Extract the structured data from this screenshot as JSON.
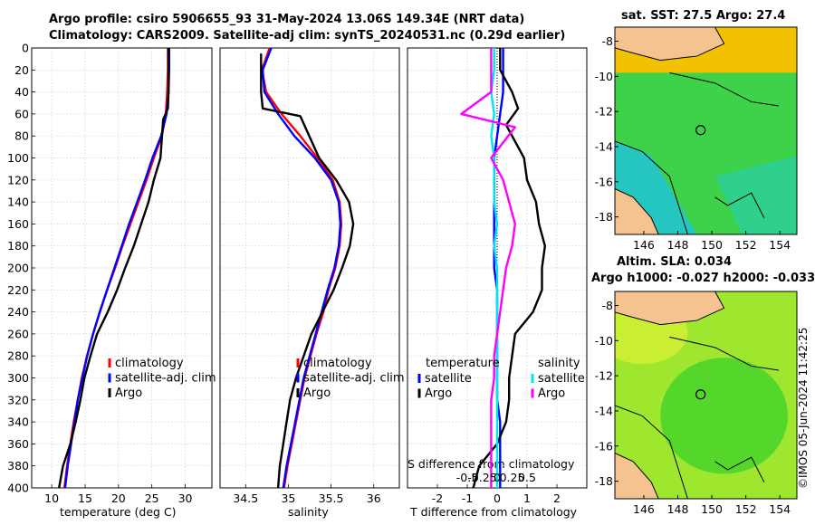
{
  "title": {
    "line1": "Argo profile: csiro 5906655_93 31-May-2024 13.06S 149.34E (NRT data)",
    "line2": "Climatology: CARS2009. Satellite-adj clim: synTS_20240531.nc (0.29d earlier)"
  },
  "colors": {
    "climatology": "#ff0000",
    "satellite": "#0000ff",
    "argo": "#000000",
    "sat_salinity": "#00e5ee",
    "argo_salinity": "#ff00ff",
    "land": "#f5c38f"
  },
  "chart_data": [
    {
      "type": "line",
      "id": "temperature",
      "xlabel": "temperature (deg C)",
      "ylabel": "",
      "xlim": [
        7,
        34
      ],
      "ylim": [
        400,
        0
      ],
      "xticks": [
        10,
        15,
        20,
        25,
        30
      ],
      "xtick_labels": [
        "10",
        "15",
        "20",
        "25",
        "30"
      ],
      "yticks": [
        0,
        20,
        40,
        60,
        80,
        100,
        120,
        140,
        160,
        180,
        200,
        220,
        240,
        260,
        280,
        300,
        320,
        340,
        360,
        380,
        400
      ],
      "ytick_labels": [
        "0",
        "20",
        "40",
        "60",
        "80",
        "100",
        "120",
        "140",
        "160",
        "180",
        "200",
        "220",
        "240",
        "260",
        "280",
        "300",
        "320",
        "340",
        "360",
        "380",
        "400"
      ],
      "legend": [
        "climatology",
        "satellite-adj. clim",
        "Argo"
      ],
      "series": [
        {
          "name": "climatology",
          "color": "#ff0000",
          "x": [
            27.4,
            27.4,
            27.3,
            27.1,
            26.5,
            25.3,
            24.2,
            23.0,
            21.8,
            20.6,
            19.5,
            18.3,
            17.2,
            16.2,
            15.3,
            14.5,
            13.9,
            13.3,
            12.8,
            12.3,
            11.9
          ],
          "y": [
            0,
            20,
            40,
            60,
            80,
            100,
            120,
            140,
            160,
            180,
            200,
            220,
            240,
            260,
            280,
            300,
            320,
            340,
            360,
            380,
            400
          ]
        },
        {
          "name": "satellite-adj. clim",
          "color": "#0000ff",
          "x": [
            27.6,
            27.6,
            27.5,
            27.2,
            26.4,
            25.1,
            24.0,
            22.8,
            21.6,
            20.5,
            19.4,
            18.3,
            17.2,
            16.2,
            15.3,
            14.6,
            13.9,
            13.4,
            12.9,
            12.4,
            12.0
          ],
          "y": [
            0,
            20,
            40,
            60,
            80,
            100,
            120,
            140,
            160,
            180,
            200,
            220,
            240,
            260,
            280,
            300,
            320,
            340,
            360,
            380,
            400
          ]
        },
        {
          "name": "Argo",
          "color": "#000000",
          "x": [
            27.5,
            27.5,
            27.5,
            27.4,
            26.7,
            26.3,
            25.3,
            24.5,
            23.4,
            22.3,
            21.0,
            19.8,
            18.4,
            16.8,
            15.8,
            14.9,
            14.3,
            13.6,
            12.8,
            11.7,
            11.1
          ],
          "y": [
            0,
            20,
            40,
            55,
            65,
            100,
            120,
            140,
            160,
            180,
            200,
            220,
            240,
            260,
            280,
            300,
            320,
            340,
            360,
            380,
            400
          ]
        }
      ]
    },
    {
      "type": "line",
      "id": "salinity",
      "xlabel": "salinity",
      "xlim": [
        34.2,
        36.3
      ],
      "ylim": [
        400,
        0
      ],
      "xticks": [
        34.5,
        35,
        35.5,
        36
      ],
      "xtick_labels": [
        "34.5",
        "35",
        "35.5",
        "36"
      ],
      "legend": [
        "climatology",
        "satellite-adj. clim",
        "Argo"
      ],
      "series": [
        {
          "name": "climatology",
          "color": "#ff0000",
          "x": [
            34.78,
            34.69,
            34.74,
            34.92,
            35.14,
            35.34,
            35.52,
            35.6,
            35.62,
            35.6,
            35.55,
            35.47,
            35.41,
            35.33,
            35.26,
            35.19,
            35.14,
            35.09,
            35.04,
            34.99,
            34.95
          ],
          "y": [
            0,
            20,
            40,
            60,
            80,
            100,
            120,
            140,
            160,
            180,
            200,
            220,
            240,
            260,
            280,
            300,
            320,
            340,
            360,
            380,
            400
          ]
        },
        {
          "name": "satellite-adj. clim",
          "color": "#0000ff",
          "x": [
            34.8,
            34.7,
            34.72,
            34.88,
            35.07,
            35.31,
            35.5,
            35.59,
            35.61,
            35.59,
            35.54,
            35.46,
            35.39,
            35.32,
            35.25,
            35.18,
            35.13,
            35.08,
            35.03,
            34.98,
            34.94
          ],
          "y": [
            0,
            20,
            40,
            60,
            80,
            100,
            120,
            140,
            160,
            180,
            200,
            220,
            240,
            260,
            280,
            300,
            320,
            340,
            360,
            380,
            400
          ]
        },
        {
          "name": "Argo",
          "color": "#000000",
          "x": [
            34.68,
            34.68,
            34.68,
            34.7,
            35.14,
            35.36,
            35.56,
            35.71,
            35.76,
            35.72,
            35.63,
            35.53,
            35.4,
            35.27,
            35.18,
            35.09,
            35.02,
            34.98,
            34.94,
            34.9,
            34.88
          ],
          "y": [
            5,
            20,
            40,
            55,
            62,
            100,
            120,
            140,
            160,
            180,
            200,
            220,
            240,
            260,
            280,
            300,
            320,
            340,
            360,
            380,
            400
          ]
        }
      ]
    },
    {
      "type": "line",
      "id": "differences",
      "xlabel": "T difference from climatology",
      "secondary_xlabel": "S difference from climatology",
      "xlim": [
        -3,
        3
      ],
      "ylim": [
        400,
        0
      ],
      "xticks": [
        -2,
        -1,
        0,
        1,
        2
      ],
      "xtick_labels": [
        "-2",
        "-1",
        "0",
        "1",
        "2"
      ],
      "secondary_xticks": [
        -1,
        -0.5,
        0,
        0.5,
        1
      ],
      "secondary_xtick_labels": [
        "-0.5",
        "-0.25",
        "0",
        "0.25",
        "0.5"
      ],
      "legend_temperature": {
        "title": "temperature",
        "entries": [
          "satellite",
          "Argo"
        ]
      },
      "legend_salinity": {
        "title": "salinity",
        "entries": [
          "satellite",
          "Argo"
        ]
      },
      "series": [
        {
          "name": "temperature satellite",
          "color": "#0000ff",
          "x": [
            0.2,
            0.2,
            0.2,
            0.1,
            0.0,
            -0.1,
            -0.1,
            -0.1,
            -0.1,
            -0.1,
            -0.1,
            0.0,
            0.0,
            0.0,
            0.0,
            0.0,
            0.0,
            0.1,
            0.1,
            0.1,
            0.1
          ],
          "y": [
            0,
            20,
            40,
            60,
            80,
            100,
            120,
            140,
            160,
            180,
            200,
            220,
            240,
            260,
            280,
            300,
            320,
            340,
            360,
            380,
            400
          ]
        },
        {
          "name": "temperature Argo",
          "color": "#000000",
          "x": [
            0.1,
            0.1,
            0.5,
            0.7,
            0.3,
            0.9,
            1.0,
            1.3,
            1.4,
            1.6,
            1.5,
            1.5,
            1.2,
            0.6,
            0.5,
            0.4,
            0.4,
            0.3,
            0.0,
            -0.6,
            -0.8
          ],
          "y": [
            0,
            20,
            40,
            55,
            70,
            100,
            120,
            140,
            160,
            180,
            200,
            220,
            240,
            260,
            280,
            300,
            320,
            340,
            360,
            380,
            400
          ]
        },
        {
          "name": "salinity satellite",
          "color": "#00e5ee",
          "x": [
            -0.1,
            -0.1,
            -0.2,
            -0.1,
            -0.2,
            -0.1,
            -0.1,
            -0.1,
            0.0,
            -0.1,
            0.0,
            0.0,
            0.0,
            0.0,
            0.0,
            0.0,
            0.0,
            0.0,
            0.0,
            0.0,
            0.0
          ],
          "y": [
            0,
            20,
            40,
            60,
            80,
            100,
            120,
            140,
            160,
            180,
            200,
            220,
            240,
            260,
            280,
            300,
            320,
            340,
            360,
            380,
            400
          ]
        },
        {
          "name": "salinity Argo",
          "color": "#ff00ff",
          "x": [
            -0.2,
            -0.2,
            -0.2,
            -1.2,
            0.6,
            -0.2,
            0.2,
            0.4,
            0.6,
            0.5,
            0.3,
            0.2,
            0.1,
            0.0,
            -0.1,
            -0.1,
            -0.2,
            -0.2,
            -0.2,
            -0.2,
            -0.2
          ],
          "y": [
            0,
            20,
            40,
            60,
            72,
            100,
            120,
            140,
            160,
            180,
            200,
            220,
            240,
            260,
            280,
            300,
            320,
            340,
            360,
            380,
            400
          ]
        }
      ]
    },
    {
      "type": "heatmap",
      "id": "sst_map",
      "title": "sat. SST: 27.5 Argo: 27.4",
      "xlim": [
        144.3,
        155.0
      ],
      "ylim": [
        -19.0,
        -7.2
      ],
      "xticks": [
        146,
        148,
        150,
        152,
        154
      ],
      "xtick_labels": [
        "146",
        "148",
        "150",
        "152",
        "154"
      ],
      "yticks": [
        -8,
        -10,
        -12,
        -14,
        -16,
        -18
      ],
      "ytick_labels": [
        "-8",
        "-10",
        "-12",
        "-14",
        "-16",
        "-18"
      ],
      "argo_position": [
        149.34,
        -13.06
      ]
    },
    {
      "type": "heatmap",
      "id": "sla_map",
      "title_line1": "Altim. SLA: 0.034",
      "title_line2": "Argo h1000: -0.027 h2000: -0.033",
      "xlim": [
        144.3,
        155.0
      ],
      "ylim": [
        -19.0,
        -7.2
      ],
      "xticks": [
        146,
        148,
        150,
        152,
        154
      ],
      "xtick_labels": [
        "146",
        "148",
        "150",
        "152",
        "154"
      ],
      "yticks": [
        -8,
        -10,
        -12,
        -14,
        -16,
        -18
      ],
      "ytick_labels": [
        "-8",
        "-10",
        "-12",
        "-14",
        "-16",
        "-18"
      ],
      "argo_position": [
        149.34,
        -13.06
      ]
    }
  ],
  "stamp": "©IMOS 05-Jun-2024 11:42:25"
}
